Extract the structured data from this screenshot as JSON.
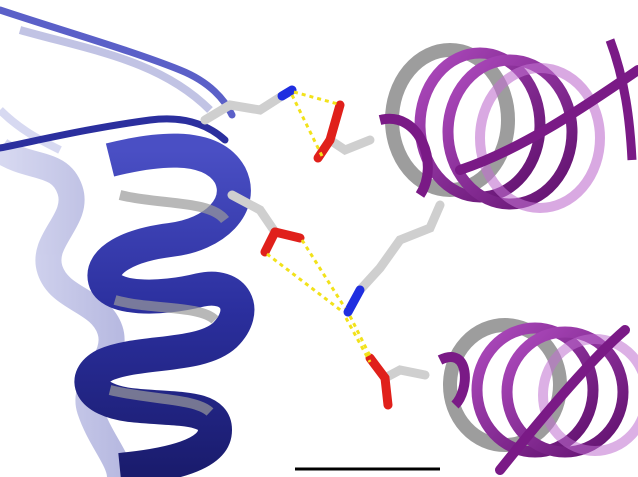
{
  "colors": {
    "background": "#ffffff",
    "chain_a_ribbon": "#2b2f9e",
    "chain_a_ribbon_dark": "#1a1c6e",
    "chain_a_faded": "#8f93cf",
    "chain_b_ribbon": "#7a1a86",
    "chain_b_inner": "#5b5b5b",
    "carbon": "#d9d9d9",
    "oxygen": "#e0201b",
    "nitrogen": "#1f2ee0",
    "hbond": "#f2e21a",
    "scale_bar": "#000000"
  },
  "elements": {
    "helix_a": "blue-alpha-helix",
    "helix_b_upper": "purple-alpha-helix-upper",
    "helix_b_lower": "purple-alpha-helix-lower",
    "residues": [
      "lysine-upper",
      "glutamate-upper",
      "aspartate-middle",
      "lysine-lower",
      "glutamate-lower"
    ],
    "hbonds": 6,
    "scale_bar": "scale-bar"
  }
}
